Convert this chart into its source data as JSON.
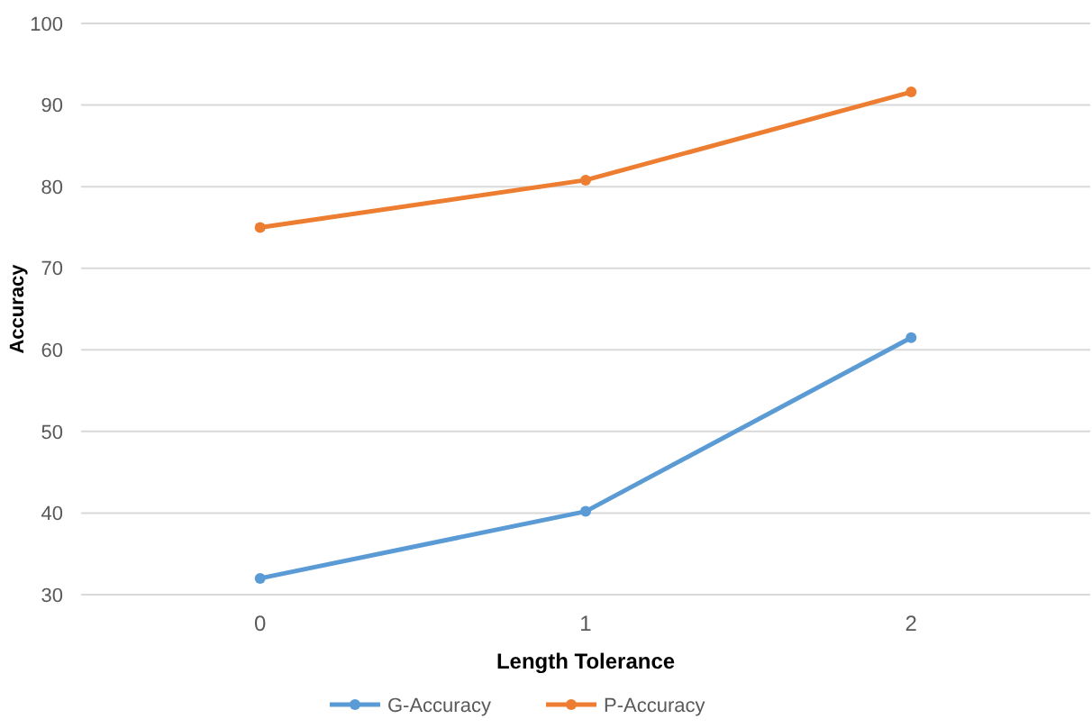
{
  "chart_data": {
    "type": "line",
    "xlabel": "Length Tolerance",
    "ylabel": "Accuracy",
    "categories": [
      "0",
      "1",
      "2"
    ],
    "series": [
      {
        "name": "G-Accuracy",
        "color": "#5b9bd5",
        "values": [
          32,
          40.2,
          61.5
        ]
      },
      {
        "name": "P-Accuracy",
        "color": "#ed7d31",
        "values": [
          75,
          80.8,
          91.6
        ]
      }
    ],
    "ylim": [
      30,
      100
    ],
    "yticks": [
      30,
      40,
      50,
      60,
      70,
      80,
      90,
      100
    ],
    "grid": "y",
    "legend": "bottom",
    "marker": "circle",
    "line_style": "solid"
  }
}
